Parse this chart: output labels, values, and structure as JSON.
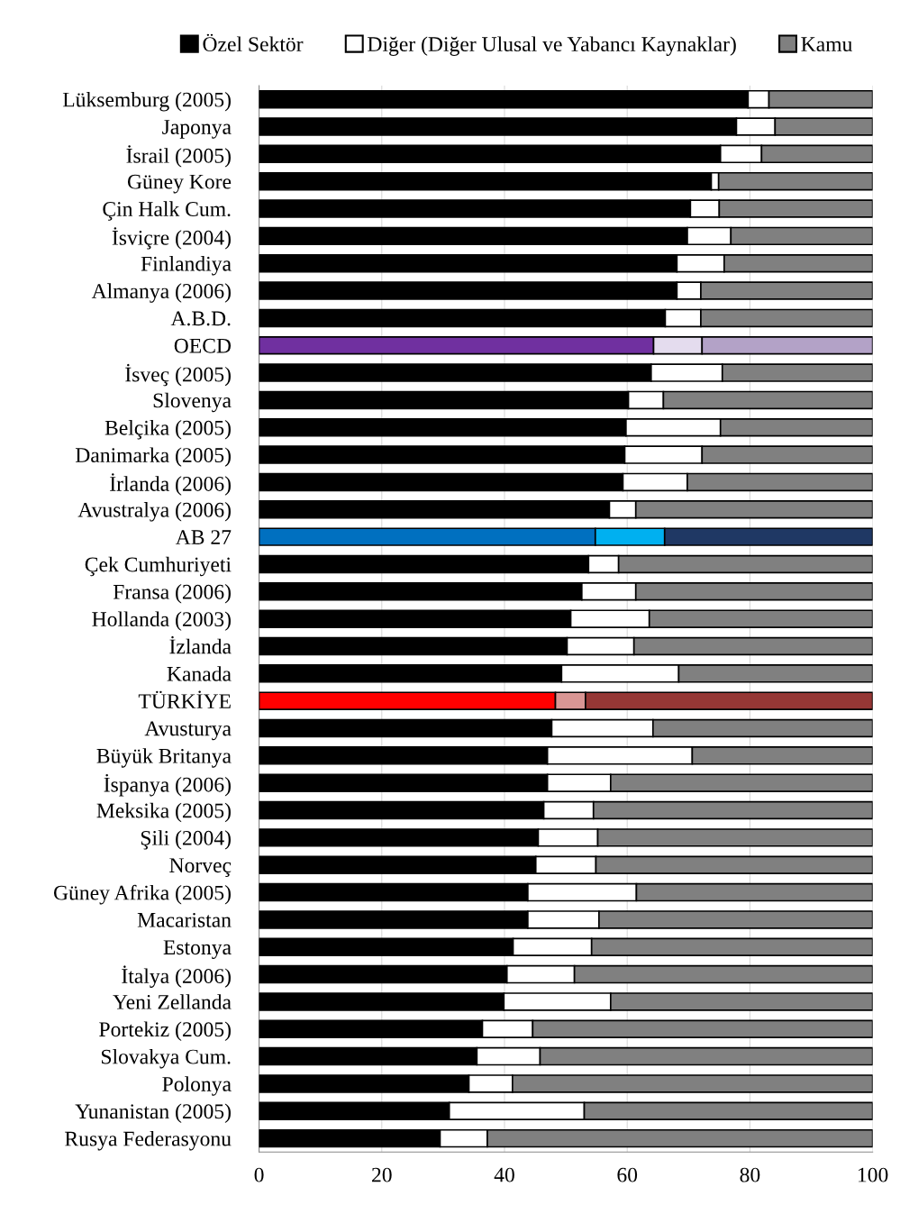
{
  "chart_data": {
    "type": "bar",
    "orientation": "horizontal",
    "stacked": true,
    "legend": "top",
    "grid": "x",
    "categories": [
      "Lüksemburg (2005)",
      "Japonya",
      "İsrail (2005)",
      "Güney Kore",
      "Çin Halk Cum.",
      "İsviçre (2004)",
      "Finlandiya",
      "Almanya (2006)",
      "A.B.D.",
      "OECD",
      "İsveç (2005)",
      "Slovenya",
      "Belçika (2005)",
      "Danimarka (2005)",
      "İrlanda (2006)",
      "Avustralya (2006)",
      "AB 27",
      "Çek Cumhuriyeti",
      "Fransa (2006)",
      "Hollanda (2003)",
      "İzlanda",
      "Kanada",
      "TÜRKİYE",
      "Avusturya",
      "Büyük Britanya",
      "İspanya (2006)",
      "Meksika (2005)",
      "Şili (2004)",
      "Norveç",
      "Güney Afrika (2005)",
      "Macaristan",
      "Estonya",
      "İtalya (2006)",
      "Yeni Zellanda",
      "Portekiz (2005)",
      "Slovakya Cum.",
      "Polonya",
      "Yunanistan (2005)",
      "Rusya Federasyonu"
    ],
    "xlim": [
      0,
      100
    ],
    "xticks": [
      0,
      20,
      40,
      60,
      80,
      100
    ],
    "series": [
      {
        "name": "Özel Sektör",
        "color": "#000000",
        "colors": [
          "#000000",
          "#000000",
          "#000000",
          "#000000",
          "#000000",
          "#000000",
          "#000000",
          "#000000",
          "#000000",
          "#7030a0",
          "#000000",
          "#000000",
          "#000000",
          "#000000",
          "#000000",
          "#000000",
          "#0070c0",
          "#000000",
          "#000000",
          "#000000",
          "#000000",
          "#000000",
          "#ff0000",
          "#000000",
          "#000000",
          "#000000",
          "#000000",
          "#000000",
          "#000000",
          "#000000",
          "#000000",
          "#000000",
          "#000000",
          "#000000",
          "#000000",
          "#000000",
          "#000000",
          "#000000",
          "#000000"
        ],
        "values": [
          79.7,
          77.8,
          75.2,
          73.7,
          70.3,
          69.8,
          68.1,
          68.1,
          66.2,
          64.3,
          63.9,
          60.2,
          59.8,
          59.6,
          59.3,
          57.1,
          54.8,
          53.7,
          52.6,
          50.8,
          50.2,
          49.3,
          48.3,
          47.7,
          47.0,
          47.0,
          46.4,
          45.5,
          45.1,
          43.8,
          43.8,
          41.4,
          40.4,
          39.9,
          36.4,
          35.5,
          34.2,
          31.0,
          29.5
        ]
      },
      {
        "name": "Diğer (Diğer Ulusal ve Yabancı Kaynaklar)",
        "color": "#ffffff",
        "colors": [
          "#ffffff",
          "#ffffff",
          "#ffffff",
          "#ffffff",
          "#ffffff",
          "#ffffff",
          "#ffffff",
          "#ffffff",
          "#ffffff",
          "#e4dcee",
          "#ffffff",
          "#ffffff",
          "#ffffff",
          "#ffffff",
          "#ffffff",
          "#ffffff",
          "#00b0f0",
          "#ffffff",
          "#ffffff",
          "#ffffff",
          "#ffffff",
          "#ffffff",
          "#d99694",
          "#ffffff",
          "#ffffff",
          "#ffffff",
          "#ffffff",
          "#ffffff",
          "#ffffff",
          "#ffffff",
          "#ffffff",
          "#ffffff",
          "#ffffff",
          "#ffffff",
          "#ffffff",
          "#ffffff",
          "#ffffff",
          "#ffffff",
          "#ffffff"
        ],
        "values": [
          3.4,
          6.3,
          6.7,
          1.2,
          4.7,
          7.1,
          7.7,
          3.9,
          5.8,
          7.9,
          11.6,
          5.7,
          15.4,
          12.6,
          10.5,
          4.3,
          11.3,
          4.9,
          8.8,
          12.8,
          10.9,
          19.1,
          4.9,
          16.5,
          23.6,
          10.3,
          8.1,
          9.7,
          9.8,
          17.7,
          11.6,
          12.8,
          11.0,
          17.4,
          8.2,
          10.3,
          7.1,
          22.0,
          7.7
        ]
      },
      {
        "name": "Kamu",
        "color": "#808080",
        "colors": [
          "#808080",
          "#808080",
          "#808080",
          "#808080",
          "#808080",
          "#808080",
          "#808080",
          "#808080",
          "#808080",
          "#b3a2c7",
          "#808080",
          "#808080",
          "#808080",
          "#808080",
          "#808080",
          "#808080",
          "#1f3864",
          "#808080",
          "#808080",
          "#808080",
          "#808080",
          "#808080",
          "#953735",
          "#808080",
          "#808080",
          "#808080",
          "#808080",
          "#808080",
          "#808080",
          "#808080",
          "#808080",
          "#808080",
          "#808080",
          "#808080",
          "#808080",
          "#808080",
          "#808080",
          "#808080",
          "#808080"
        ],
        "values": [
          16.9,
          15.9,
          18.1,
          25.1,
          25.0,
          23.1,
          24.2,
          28.0,
          28.0,
          27.8,
          24.5,
          34.1,
          24.8,
          27.8,
          30.2,
          38.6,
          33.9,
          41.4,
          38.6,
          36.4,
          38.9,
          31.6,
          46.8,
          35.8,
          29.4,
          42.7,
          45.5,
          44.8,
          45.1,
          38.5,
          44.6,
          45.8,
          48.6,
          42.7,
          55.4,
          54.2,
          58.7,
          47.0,
          62.8
        ]
      }
    ]
  }
}
